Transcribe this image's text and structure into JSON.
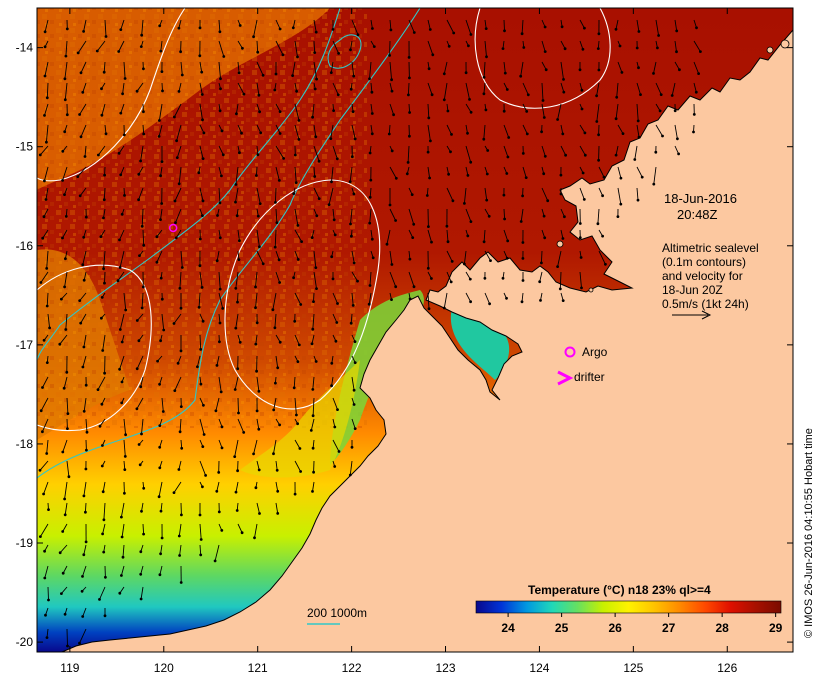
{
  "map": {
    "timestamp_date": "18-Jun-2016",
    "timestamp_time": "20:48Z",
    "legend_lines": [
      "Altimetric sealevel",
      "(0.1m contours)",
      "and velocity for",
      "18-Jun 20Z",
      "0.5m/s (1kt 24h)"
    ],
    "argo_label": "Argo",
    "drifter_label": "drifter",
    "depth_label": "200  1000m",
    "copyright": "© IMOS 26-Jun-2016 04:10:55 Hobart time",
    "colorbar": {
      "title": "Temperature (°C) n18 23% ql>=4",
      "ticks": [
        "24",
        "25",
        "26",
        "27",
        "28",
        "29"
      ],
      "min": 23.4,
      "max": 29.1,
      "colors": [
        "#08088c",
        "#0033d6",
        "#0099e0",
        "#20d8b8",
        "#66e060",
        "#c8f000",
        "#fff200",
        "#ffc400",
        "#ff8a00",
        "#ff4a00",
        "#e01000",
        "#a81000",
        "#7a0c00"
      ]
    },
    "y_ticks": [
      {
        "label": "-14",
        "value": -14
      },
      {
        "label": "-15",
        "value": -15
      },
      {
        "label": "-16",
        "value": -16
      },
      {
        "label": "-17",
        "value": -17
      },
      {
        "label": "-18",
        "value": -18
      },
      {
        "label": "-19",
        "value": -19
      },
      {
        "label": "-20",
        "value": -20
      }
    ],
    "x_ticks": [
      {
        "label": "119",
        "value": 119
      },
      {
        "label": "120",
        "value": 120
      },
      {
        "label": "121",
        "value": 121
      },
      {
        "label": "122",
        "value": 122
      },
      {
        "label": "123",
        "value": 123
      },
      {
        "label": "124",
        "value": 124
      },
      {
        "label": "125",
        "value": 125
      },
      {
        "label": "126",
        "value": 126
      }
    ],
    "lon_range": [
      118.65,
      126.7
    ],
    "lat_range": [
      -20.1,
      -13.6
    ],
    "argo_float": {
      "lon": 120.1,
      "lat": -15.82
    },
    "colors": {
      "land": "#fcc8a0",
      "hot": "#a81000",
      "warm": "#e07000",
      "contour": "#ffffff",
      "isobath": "#30c8c8",
      "argo": "#ff00ff"
    }
  }
}
